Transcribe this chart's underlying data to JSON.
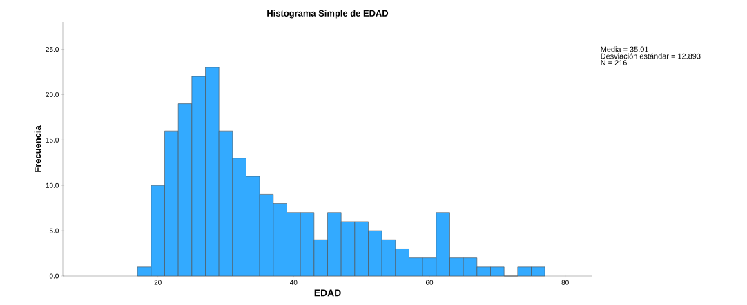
{
  "chart_data": {
    "type": "histogram",
    "title": "Histograma Simple de EDAD",
    "xlabel": "EDAD",
    "ylabel": "Frecuencia",
    "annotations": [
      "Media = 35.01",
      "Desviación estándar = 12.893",
      "N = 216"
    ],
    "bins": [
      17,
      19,
      21,
      23,
      25,
      27,
      29,
      31,
      33,
      35,
      37,
      39,
      41,
      43,
      45,
      47,
      49,
      51,
      53,
      55,
      57,
      59,
      61,
      63,
      65,
      67,
      69,
      71,
      73,
      75,
      77
    ],
    "values": [
      1,
      10,
      16,
      19,
      22,
      23,
      16,
      13,
      11,
      9,
      8,
      7,
      7,
      4,
      7,
      6,
      6,
      5,
      4,
      3,
      2,
      2,
      7,
      2,
      2,
      1,
      1,
      0,
      1,
      1
    ],
    "color": "#33aaff",
    "xlim": [
      6,
      84
    ],
    "ylim": [
      0,
      28
    ],
    "xticks": [
      20,
      40,
      60,
      80
    ],
    "yticks": [
      {
        "value": 0,
        "label": "0.0"
      },
      {
        "value": 5,
        "label": "5.0"
      },
      {
        "value": 10,
        "label": "10.0"
      },
      {
        "value": 15,
        "label": "15.0"
      },
      {
        "value": 20,
        "label": "20.0"
      },
      {
        "value": 25,
        "label": "25.0"
      }
    ],
    "grid": false
  }
}
